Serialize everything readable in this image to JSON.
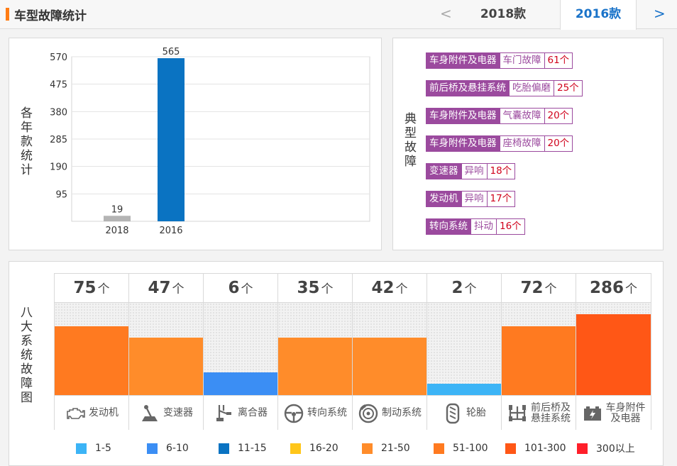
{
  "header": {
    "title": "车型故障统计",
    "prev_arrow": "<",
    "next_arrow": ">",
    "tabs": [
      {
        "label": "2018款",
        "active": false
      },
      {
        "label": "2016款",
        "active": true
      }
    ]
  },
  "year_panel": {
    "ylabel": "各年款统计"
  },
  "chart_data": {
    "type": "bar",
    "categories": [
      "2018",
      "2016"
    ],
    "values": [
      19,
      565
    ],
    "colors": [
      "#b4b4b4",
      "#0a73c2"
    ],
    "yticks": [
      95,
      190,
      285,
      380,
      475,
      570
    ],
    "ylim": [
      0,
      570
    ],
    "ylabel": "各年款统计",
    "grid": true
  },
  "fault_panel": {
    "label": "典型故障",
    "faults": [
      {
        "category": "车身附件及电器",
        "type": "车门故障",
        "count": "61个"
      },
      {
        "category": "前后桥及悬挂系统",
        "type": "吃胎偏磨",
        "count": "25个"
      },
      {
        "category": "车身附件及电器",
        "type": "气囊故障",
        "count": "20个"
      },
      {
        "category": "车身附件及电器",
        "type": "座椅故障",
        "count": "20个"
      },
      {
        "category": "变速器",
        "type": "异响",
        "count": "18个"
      },
      {
        "category": "发动机",
        "type": "异响",
        "count": "17个"
      },
      {
        "category": "转向系统",
        "type": "抖动",
        "count": "16个"
      }
    ]
  },
  "system_panel": {
    "label": "八大系统故障图",
    "unit": "个",
    "systems": [
      {
        "name": "发动机",
        "count": "75",
        "level": 0.75,
        "color": "#ff7a20",
        "icon": "engine-icon"
      },
      {
        "name": "变速器",
        "count": "47",
        "level": 0.62,
        "color": "#ff8c2a",
        "icon": "gear-shifter-icon"
      },
      {
        "name": "离合器",
        "count": "6",
        "level": 0.25,
        "color": "#3b8ef4",
        "icon": "clutch-pedal-icon"
      },
      {
        "name": "转向系统",
        "count": "35",
        "level": 0.62,
        "color": "#ff8c2a",
        "icon": "steering-wheel-icon"
      },
      {
        "name": "制动系统",
        "count": "42",
        "level": 0.62,
        "color": "#ff8c2a",
        "icon": "brake-disc-icon"
      },
      {
        "name": "轮胎",
        "count": "2",
        "level": 0.12,
        "color": "#3cb4f6",
        "icon": "tire-icon"
      },
      {
        "name": "前后桥及\n悬挂系统",
        "count": "72",
        "level": 0.75,
        "color": "#ff7a20",
        "icon": "suspension-icon"
      },
      {
        "name": "车身附件\n及电器",
        "count": "286",
        "level": 0.88,
        "color": "#ff5716",
        "icon": "battery-icon"
      }
    ]
  },
  "legend": [
    {
      "label": "1-5",
      "color": "#3cb4f6"
    },
    {
      "label": "6-10",
      "color": "#3b8ef4"
    },
    {
      "label": "11-15",
      "color": "#0a73c2"
    },
    {
      "label": "16-20",
      "color": "#ffc61a"
    },
    {
      "label": "21-50",
      "color": "#ff8c2a"
    },
    {
      "label": "51-100",
      "color": "#ff7a20"
    },
    {
      "label": "101-300",
      "color": "#ff5716"
    },
    {
      "label": "300以上",
      "color": "#ff1f2a"
    }
  ]
}
